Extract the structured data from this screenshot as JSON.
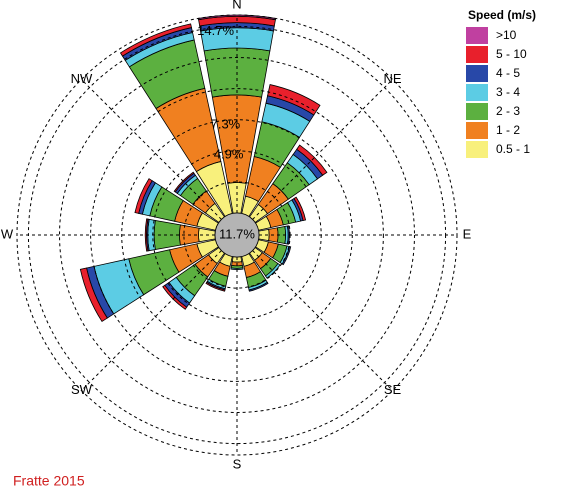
{
  "chart_data": {
    "type": "windrose",
    "footer": "Fratte 2015",
    "legend_title": "Speed (m/s)",
    "categories": [
      "N",
      null,
      "NE",
      null,
      "E",
      null,
      "SE",
      null,
      "S",
      null,
      "SW",
      null,
      "W",
      null,
      "NW",
      null
    ],
    "calm": {
      "value": 11.7,
      "label": "11.7%"
    },
    "rlim": [
      0,
      15.6
    ],
    "rgrid": [
      2.45,
      4.9,
      7.35,
      9.8,
      12.25,
      14.7
    ],
    "rticks": [
      {
        "value": 4.9,
        "label": "4.9%"
      },
      {
        "value": 7.3,
        "label": "7.3%"
      },
      {
        "value": 14.7,
        "label": "14.7%"
      }
    ],
    "series": [
      {
        "name": "0.5 - 1",
        "color": "#f8f07c",
        "values": [
          2.4,
          1.4,
          1.2,
          1.0,
          0.8,
          0.8,
          0.7,
          0.8,
          0.4,
          0.8,
          1.0,
          1.5,
          1.3,
          1.5,
          1.3,
          4.2
        ]
      },
      {
        "name": "1 - 2",
        "color": "#f08020",
        "values": [
          6.9,
          3.2,
          2.0,
          1.0,
          0.7,
          0.8,
          0.8,
          0.9,
          0.3,
          0.8,
          1.3,
          2.2,
          1.5,
          1.8,
          1.2,
          5.9
        ]
      },
      {
        "name": "2 - 3",
        "color": "#5cb040",
        "values": [
          3.7,
          2.8,
          2.0,
          1.0,
          0.6,
          0.7,
          0.7,
          0.8,
          0.2,
          0.8,
          1.8,
          3.3,
          2.0,
          2.0,
          1.2,
          3.9
        ]
      },
      {
        "name": "3 - 4",
        "color": "#5ccce4",
        "values": [
          1.6,
          1.5,
          0.8,
          0.4,
          0.2,
          0.2,
          0.2,
          0.2,
          0.1,
          0.2,
          0.7,
          2.8,
          0.5,
          0.6,
          0.3,
          0.6
        ]
      },
      {
        "name": "4 - 5",
        "color": "#2848a8",
        "values": [
          0.4,
          0.6,
          0.5,
          0.2,
          0.1,
          0.1,
          0,
          0.1,
          0,
          0.1,
          0.4,
          0.6,
          0.1,
          0.3,
          0.2,
          0.4
        ]
      },
      {
        "name": "5 - 10",
        "color": "#e8202c",
        "values": [
          0.5,
          0.9,
          0.4,
          0.2,
          0,
          0,
          0,
          0,
          0,
          0.1,
          0.2,
          0.5,
          0.1,
          0.3,
          0.1,
          0.3
        ]
      },
      {
        "name": ">10",
        "color": "#c040a0",
        "values": [
          0.1,
          0,
          0,
          0,
          0,
          0,
          0,
          0,
          0,
          0,
          0,
          0,
          0,
          0,
          0,
          0
        ]
      }
    ]
  }
}
